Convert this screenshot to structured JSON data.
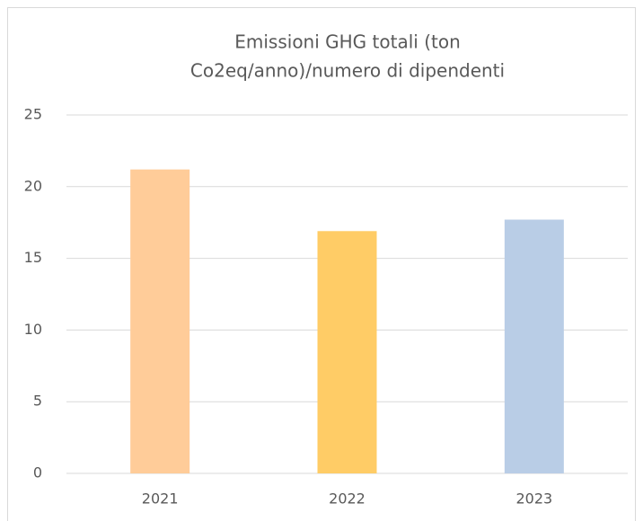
{
  "chart_data": {
    "type": "bar",
    "title": [
      "Emissioni GHG totali (ton",
      "Co2eq/anno)/numero di dipendenti"
    ],
    "categories": [
      "2021",
      "2022",
      "2023"
    ],
    "values": [
      21.2,
      16.9,
      17.7
    ],
    "colors": [
      "#ffcc99",
      "#ffcc66",
      "#b9cde6"
    ],
    "ylim": [
      0,
      25
    ],
    "yticks": [
      0,
      5,
      10,
      15,
      20,
      25
    ],
    "grid": true
  }
}
